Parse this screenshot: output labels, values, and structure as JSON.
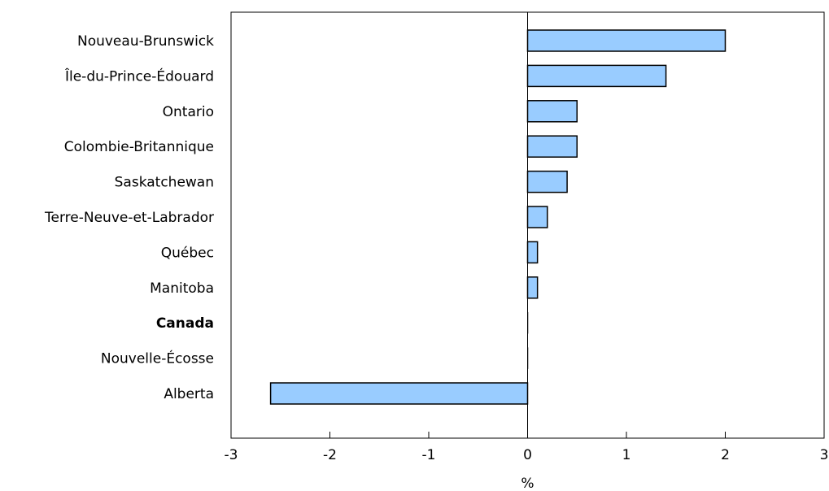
{
  "chart_data": {
    "type": "bar",
    "orientation": "horizontal",
    "title": "",
    "xlabel": "%",
    "ylabel": "",
    "xlim": [
      -3,
      3
    ],
    "xticks": [
      -3,
      -2,
      -1,
      0,
      1,
      2,
      3
    ],
    "grid": false,
    "bar_color": "#99ccff",
    "bar_edge_color": "#000000",
    "categories": [
      "Nouveau-Brunswick",
      "Île-du-Prince-Édouard",
      "Ontario",
      "Colombie-Britannique",
      "Saskatchewan",
      "Terre-Neuve-et-Labrador",
      "Québec",
      "Manitoba",
      "Canada",
      "Nouvelle-Écosse",
      "Alberta"
    ],
    "bold_categories": [
      "Canada"
    ],
    "values": [
      2.0,
      1.4,
      0.5,
      0.5,
      0.4,
      0.2,
      0.1,
      0.1,
      0.0,
      0.0,
      -2.6
    ]
  }
}
